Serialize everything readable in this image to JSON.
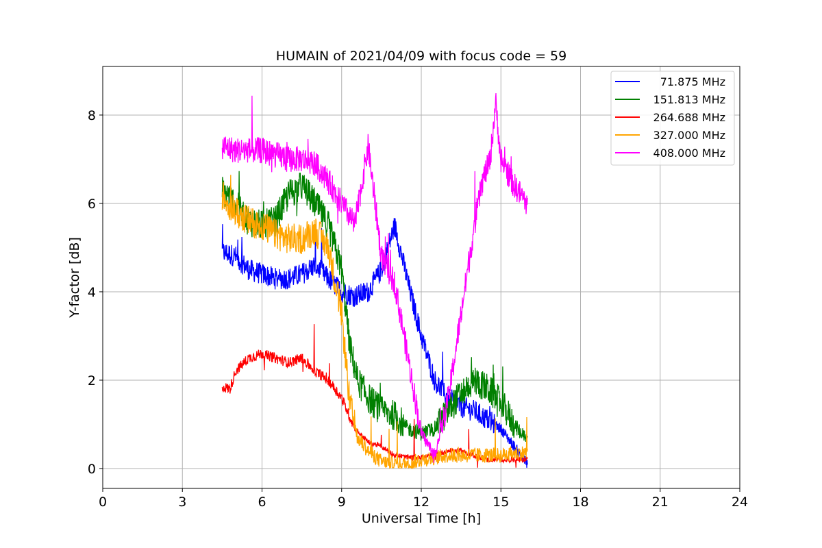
{
  "chart_data": {
    "type": "line",
    "title": "HUMAIN of 2021/04/09 with focus code = 59",
    "xlabel": "Universal Time [h]",
    "ylabel": "Y-factor [dB]",
    "xlim": [
      0,
      24
    ],
    "ylim": [
      -0.45,
      9.1
    ],
    "xticks": [
      0,
      3,
      6,
      9,
      12,
      15,
      18,
      21,
      24
    ],
    "yticks": [
      0,
      2,
      4,
      6,
      8
    ],
    "grid": true,
    "legend_position": "top-right",
    "series": [
      {
        "name": "71.875 MHz",
        "color": "#0000ff",
        "x": [
          4.5,
          4.8,
          5.0,
          5.5,
          6.0,
          6.5,
          7.0,
          7.5,
          8.0,
          8.5,
          9.0,
          9.5,
          10.0,
          10.5,
          11.0,
          11.5,
          12.0,
          12.5,
          13.0,
          13.5,
          14.0,
          14.5,
          15.0,
          15.5,
          16.0
        ],
        "y": [
          4.9,
          4.85,
          4.8,
          4.5,
          4.4,
          4.3,
          4.3,
          4.4,
          4.6,
          4.3,
          4.0,
          3.9,
          4.0,
          4.5,
          5.5,
          4.2,
          3.0,
          2.0,
          1.6,
          1.4,
          1.3,
          1.1,
          0.9,
          0.5,
          0.1
        ]
      },
      {
        "name": "151.813 MHz",
        "color": "#008000",
        "x": [
          4.5,
          5.0,
          5.5,
          6.0,
          6.5,
          7.0,
          7.5,
          8.0,
          8.5,
          9.0,
          9.3,
          9.6,
          10.0,
          10.5,
          11.0,
          11.5,
          12.0,
          12.5,
          13.0,
          13.5,
          14.0,
          14.5,
          15.0,
          15.5,
          16.0
        ],
        "y": [
          6.3,
          6.0,
          5.6,
          5.5,
          5.6,
          6.2,
          6.4,
          6.0,
          5.5,
          4.5,
          2.8,
          2.0,
          1.6,
          1.3,
          1.2,
          0.9,
          0.8,
          0.9,
          1.3,
          1.7,
          2.0,
          1.8,
          1.5,
          1.0,
          0.6
        ]
      },
      {
        "name": "264.688 MHz",
        "color": "#ff0000",
        "x": [
          4.5,
          4.8,
          5.0,
          5.5,
          6.0,
          6.5,
          7.0,
          7.5,
          8.0,
          8.5,
          9.0,
          9.5,
          10.0,
          10.5,
          11.0,
          11.5,
          12.0,
          12.5,
          13.0,
          13.5,
          14.0,
          14.5,
          15.0,
          15.5,
          16.0
        ],
        "y": [
          1.85,
          1.8,
          2.2,
          2.5,
          2.6,
          2.5,
          2.4,
          2.5,
          2.2,
          2.0,
          1.6,
          0.9,
          0.6,
          0.5,
          0.3,
          0.25,
          0.25,
          0.3,
          0.4,
          0.4,
          0.3,
          0.2,
          0.2,
          0.2,
          0.2
        ]
      },
      {
        "name": "327.000 MHz",
        "color": "#ffa500",
        "x": [
          4.5,
          5.0,
          5.5,
          6.0,
          6.5,
          7.0,
          7.5,
          8.0,
          8.5,
          9.0,
          9.3,
          9.6,
          10.0,
          10.5,
          11.0,
          11.5,
          12.0,
          12.5,
          13.0,
          13.5,
          14.0,
          14.5,
          15.0,
          15.5,
          16.0
        ],
        "y": [
          6.2,
          5.8,
          5.6,
          5.5,
          5.3,
          5.2,
          5.2,
          5.4,
          5.0,
          3.5,
          1.5,
          0.7,
          0.4,
          0.15,
          0.1,
          0.1,
          0.2,
          0.25,
          0.3,
          0.3,
          0.3,
          0.3,
          0.3,
          0.35,
          0.35
        ]
      },
      {
        "name": "408.000 MHz",
        "color": "#ff00ff",
        "x": [
          4.5,
          5.0,
          5.5,
          6.0,
          6.5,
          7.0,
          7.5,
          8.0,
          8.5,
          9.0,
          9.5,
          10.0,
          10.5,
          11.0,
          11.5,
          12.0,
          12.5,
          13.0,
          13.5,
          14.0,
          14.3,
          14.6,
          14.8,
          15.0,
          15.5,
          16.0
        ],
        "y": [
          7.3,
          7.2,
          7.2,
          7.2,
          7.1,
          7.0,
          7.0,
          6.9,
          6.5,
          6.0,
          5.5,
          7.3,
          4.8,
          4.2,
          2.5,
          0.8,
          0.3,
          1.5,
          3.5,
          5.5,
          6.5,
          7.0,
          8.3,
          7.0,
          6.4,
          6.0
        ]
      }
    ]
  }
}
